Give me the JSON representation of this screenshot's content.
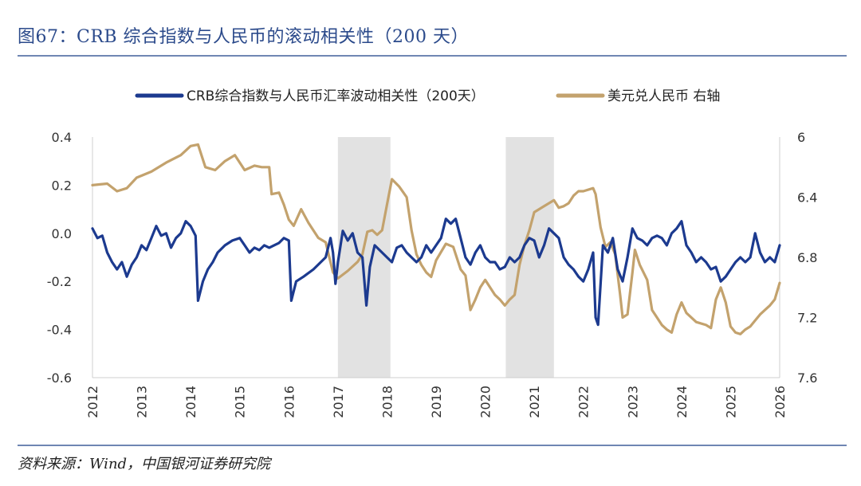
{
  "header": {
    "title": "图67：CRB 综合指数与人民币的滚动相关性（200 天）"
  },
  "footer": {
    "source": "资料来源：Wind，中国银河证券研究院"
  },
  "colors": {
    "series1": "#1c3a8f",
    "series2": "#c3a26d",
    "shade": "#e2e2e2",
    "axis": "#cfcfcf"
  },
  "chart_data": {
    "type": "line",
    "title": "",
    "xlabel": "",
    "ylabel_left": "",
    "ylabel_right": "",
    "x_ticks": [
      "2012",
      "2013",
      "2014",
      "2015",
      "2016",
      "2017",
      "2018",
      "2019",
      "2020",
      "2021",
      "2022",
      "2023",
      "2024",
      "2025",
      "2026"
    ],
    "x_range": [
      2012,
      2026
    ],
    "y_left_ticks": [
      "0.4",
      "0.2",
      "0.0",
      "-0.2",
      "-0.4",
      "-0.6"
    ],
    "y_left_range": [
      -0.6,
      0.4
    ],
    "y_right_ticks": [
      "6",
      "6.4",
      "6.8",
      "7.2",
      "7.6"
    ],
    "y_right_range": [
      6.0,
      7.6
    ],
    "y_right_inverted": true,
    "shaded_periods": [
      [
        2017.0,
        2018.07
      ],
      [
        2020.42,
        2021.4
      ]
    ],
    "series": [
      {
        "name": "CRB综合指数与人民币汇率波动相关性（200天）",
        "axis": "left",
        "points": [
          [
            2012.0,
            0.02
          ],
          [
            2012.1,
            -0.02
          ],
          [
            2012.2,
            -0.01
          ],
          [
            2012.3,
            -0.08
          ],
          [
            2012.4,
            -0.12
          ],
          [
            2012.5,
            -0.15
          ],
          [
            2012.6,
            -0.12
          ],
          [
            2012.7,
            -0.18
          ],
          [
            2012.8,
            -0.13
          ],
          [
            2012.9,
            -0.1
          ],
          [
            2013.0,
            -0.05
          ],
          [
            2013.1,
            -0.07
          ],
          [
            2013.2,
            -0.02
          ],
          [
            2013.3,
            0.03
          ],
          [
            2013.4,
            -0.01
          ],
          [
            2013.5,
            0.0
          ],
          [
            2013.6,
            -0.06
          ],
          [
            2013.7,
            -0.02
          ],
          [
            2013.8,
            0.0
          ],
          [
            2013.9,
            0.05
          ],
          [
            2014.0,
            0.03
          ],
          [
            2014.1,
            -0.01
          ],
          [
            2014.15,
            -0.28
          ],
          [
            2014.25,
            -0.2
          ],
          [
            2014.35,
            -0.15
          ],
          [
            2014.45,
            -0.12
          ],
          [
            2014.55,
            -0.08
          ],
          [
            2014.7,
            -0.05
          ],
          [
            2014.85,
            -0.03
          ],
          [
            2015.0,
            -0.02
          ],
          [
            2015.1,
            -0.05
          ],
          [
            2015.2,
            -0.08
          ],
          [
            2015.3,
            -0.06
          ],
          [
            2015.4,
            -0.07
          ],
          [
            2015.5,
            -0.05
          ],
          [
            2015.6,
            -0.06
          ],
          [
            2015.7,
            -0.05
          ],
          [
            2015.8,
            -0.04
          ],
          [
            2015.9,
            -0.02
          ],
          [
            2016.0,
            -0.03
          ],
          [
            2016.05,
            -0.28
          ],
          [
            2016.15,
            -0.2
          ],
          [
            2016.3,
            -0.18
          ],
          [
            2016.5,
            -0.15
          ],
          [
            2016.6,
            -0.13
          ],
          [
            2016.75,
            -0.1
          ],
          [
            2016.85,
            -0.02
          ],
          [
            2016.9,
            -0.08
          ],
          [
            2016.95,
            -0.21
          ],
          [
            2017.0,
            -0.12
          ],
          [
            2017.1,
            0.01
          ],
          [
            2017.2,
            -0.03
          ],
          [
            2017.3,
            0.0
          ],
          [
            2017.4,
            -0.08
          ],
          [
            2017.5,
            -0.1
          ],
          [
            2017.58,
            -0.3
          ],
          [
            2017.65,
            -0.14
          ],
          [
            2017.75,
            -0.05
          ],
          [
            2017.9,
            -0.08
          ],
          [
            2018.0,
            -0.1
          ],
          [
            2018.1,
            -0.12
          ],
          [
            2018.2,
            -0.06
          ],
          [
            2018.3,
            -0.05
          ],
          [
            2018.4,
            -0.08
          ],
          [
            2018.5,
            -0.1
          ],
          [
            2018.6,
            -0.12
          ],
          [
            2018.7,
            -0.1
          ],
          [
            2018.8,
            -0.05
          ],
          [
            2018.9,
            -0.08
          ],
          [
            2019.0,
            -0.05
          ],
          [
            2019.1,
            -0.02
          ],
          [
            2019.2,
            0.06
          ],
          [
            2019.3,
            0.04
          ],
          [
            2019.4,
            0.06
          ],
          [
            2019.5,
            -0.02
          ],
          [
            2019.6,
            -0.1
          ],
          [
            2019.7,
            -0.13
          ],
          [
            2019.8,
            -0.08
          ],
          [
            2019.9,
            -0.05
          ],
          [
            2020.0,
            -0.1
          ],
          [
            2020.1,
            -0.12
          ],
          [
            2020.2,
            -0.12
          ],
          [
            2020.3,
            -0.15
          ],
          [
            2020.4,
            -0.14
          ],
          [
            2020.5,
            -0.1
          ],
          [
            2020.6,
            -0.12
          ],
          [
            2020.7,
            -0.1
          ],
          [
            2020.8,
            -0.05
          ],
          [
            2020.9,
            -0.02
          ],
          [
            2021.0,
            -0.03
          ],
          [
            2021.1,
            -0.1
          ],
          [
            2021.2,
            -0.05
          ],
          [
            2021.3,
            0.02
          ],
          [
            2021.4,
            0.0
          ],
          [
            2021.5,
            -0.02
          ],
          [
            2021.6,
            -0.1
          ],
          [
            2021.7,
            -0.13
          ],
          [
            2021.8,
            -0.15
          ],
          [
            2021.9,
            -0.18
          ],
          [
            2022.0,
            -0.2
          ],
          [
            2022.1,
            -0.15
          ],
          [
            2022.2,
            -0.08
          ],
          [
            2022.25,
            -0.35
          ],
          [
            2022.3,
            -0.38
          ],
          [
            2022.4,
            -0.05
          ],
          [
            2022.5,
            -0.08
          ],
          [
            2022.6,
            -0.02
          ],
          [
            2022.7,
            -0.15
          ],
          [
            2022.8,
            -0.2
          ],
          [
            2022.9,
            -0.1
          ],
          [
            2023.0,
            0.02
          ],
          [
            2023.1,
            -0.02
          ],
          [
            2023.2,
            -0.03
          ],
          [
            2023.3,
            -0.05
          ],
          [
            2023.4,
            -0.02
          ],
          [
            2023.5,
            -0.01
          ],
          [
            2023.6,
            -0.02
          ],
          [
            2023.7,
            -0.05
          ],
          [
            2023.8,
            0.0
          ],
          [
            2023.9,
            0.02
          ],
          [
            2024.0,
            0.05
          ],
          [
            2024.1,
            -0.05
          ],
          [
            2024.2,
            -0.08
          ],
          [
            2024.3,
            -0.12
          ],
          [
            2024.4,
            -0.1
          ],
          [
            2024.5,
            -0.12
          ],
          [
            2024.6,
            -0.15
          ],
          [
            2024.7,
            -0.14
          ],
          [
            2024.8,
            -0.2
          ],
          [
            2024.9,
            -0.18
          ],
          [
            2025.0,
            -0.15
          ],
          [
            2025.1,
            -0.12
          ],
          [
            2025.2,
            -0.1
          ],
          [
            2025.3,
            -0.12
          ],
          [
            2025.4,
            -0.1
          ],
          [
            2025.5,
            0.0
          ],
          [
            2025.6,
            -0.08
          ],
          [
            2025.7,
            -0.12
          ],
          [
            2025.8,
            -0.1
          ],
          [
            2025.9,
            -0.12
          ],
          [
            2026.0,
            -0.05
          ]
        ]
      },
      {
        "name": "美元兑人民币 右轴",
        "axis": "right",
        "points": [
          [
            2012.0,
            6.32
          ],
          [
            2012.3,
            6.31
          ],
          [
            2012.5,
            6.36
          ],
          [
            2012.7,
            6.34
          ],
          [
            2012.9,
            6.27
          ],
          [
            2013.2,
            6.23
          ],
          [
            2013.5,
            6.17
          ],
          [
            2013.8,
            6.12
          ],
          [
            2014.0,
            6.06
          ],
          [
            2014.15,
            6.05
          ],
          [
            2014.3,
            6.2
          ],
          [
            2014.5,
            6.22
          ],
          [
            2014.7,
            6.16
          ],
          [
            2014.9,
            6.12
          ],
          [
            2015.1,
            6.22
          ],
          [
            2015.3,
            6.19
          ],
          [
            2015.45,
            6.2
          ],
          [
            2015.6,
            6.2
          ],
          [
            2015.65,
            6.38
          ],
          [
            2015.8,
            6.37
          ],
          [
            2015.9,
            6.45
          ],
          [
            2016.0,
            6.55
          ],
          [
            2016.1,
            6.59
          ],
          [
            2016.25,
            6.48
          ],
          [
            2016.4,
            6.57
          ],
          [
            2016.6,
            6.67
          ],
          [
            2016.75,
            6.7
          ],
          [
            2016.9,
            6.9
          ],
          [
            2017.0,
            6.94
          ],
          [
            2017.2,
            6.89
          ],
          [
            2017.4,
            6.83
          ],
          [
            2017.5,
            6.78
          ],
          [
            2017.6,
            6.63
          ],
          [
            2017.7,
            6.62
          ],
          [
            2017.8,
            6.65
          ],
          [
            2017.9,
            6.62
          ],
          [
            2018.0,
            6.45
          ],
          [
            2018.1,
            6.28
          ],
          [
            2018.25,
            6.33
          ],
          [
            2018.4,
            6.4
          ],
          [
            2018.5,
            6.62
          ],
          [
            2018.6,
            6.78
          ],
          [
            2018.7,
            6.85
          ],
          [
            2018.8,
            6.9
          ],
          [
            2018.9,
            6.93
          ],
          [
            2019.0,
            6.82
          ],
          [
            2019.2,
            6.71
          ],
          [
            2019.35,
            6.73
          ],
          [
            2019.5,
            6.88
          ],
          [
            2019.6,
            6.92
          ],
          [
            2019.7,
            7.15
          ],
          [
            2019.8,
            7.08
          ],
          [
            2019.9,
            7.0
          ],
          [
            2020.0,
            6.95
          ],
          [
            2020.2,
            7.05
          ],
          [
            2020.3,
            7.08
          ],
          [
            2020.4,
            7.12
          ],
          [
            2020.5,
            7.08
          ],
          [
            2020.6,
            7.05
          ],
          [
            2020.7,
            6.85
          ],
          [
            2020.8,
            6.72
          ],
          [
            2020.9,
            6.62
          ],
          [
            2021.0,
            6.5
          ],
          [
            2021.2,
            6.46
          ],
          [
            2021.4,
            6.42
          ],
          [
            2021.5,
            6.47
          ],
          [
            2021.6,
            6.46
          ],
          [
            2021.7,
            6.44
          ],
          [
            2021.8,
            6.39
          ],
          [
            2021.9,
            6.36
          ],
          [
            2022.0,
            6.36
          ],
          [
            2022.2,
            6.34
          ],
          [
            2022.25,
            6.38
          ],
          [
            2022.35,
            6.6
          ],
          [
            2022.45,
            6.73
          ],
          [
            2022.55,
            6.7
          ],
          [
            2022.65,
            6.78
          ],
          [
            2022.75,
            7.05
          ],
          [
            2022.8,
            7.2
          ],
          [
            2022.9,
            7.18
          ],
          [
            2023.0,
            6.9
          ],
          [
            2023.05,
            6.75
          ],
          [
            2023.15,
            6.85
          ],
          [
            2023.3,
            6.95
          ],
          [
            2023.4,
            7.15
          ],
          [
            2023.5,
            7.2
          ],
          [
            2023.6,
            7.25
          ],
          [
            2023.7,
            7.28
          ],
          [
            2023.8,
            7.3
          ],
          [
            2023.9,
            7.18
          ],
          [
            2024.0,
            7.1
          ],
          [
            2024.1,
            7.17
          ],
          [
            2024.3,
            7.23
          ],
          [
            2024.5,
            7.25
          ],
          [
            2024.6,
            7.27
          ],
          [
            2024.7,
            7.08
          ],
          [
            2024.8,
            7.0
          ],
          [
            2024.9,
            7.1
          ],
          [
            2025.0,
            7.26
          ],
          [
            2025.1,
            7.3
          ],
          [
            2025.2,
            7.31
          ],
          [
            2025.3,
            7.28
          ],
          [
            2025.4,
            7.26
          ],
          [
            2025.5,
            7.22
          ],
          [
            2025.6,
            7.18
          ],
          [
            2025.7,
            7.15
          ],
          [
            2025.8,
            7.12
          ],
          [
            2025.9,
            7.08
          ],
          [
            2026.0,
            6.97
          ]
        ]
      }
    ],
    "legend_position": "top-center"
  }
}
